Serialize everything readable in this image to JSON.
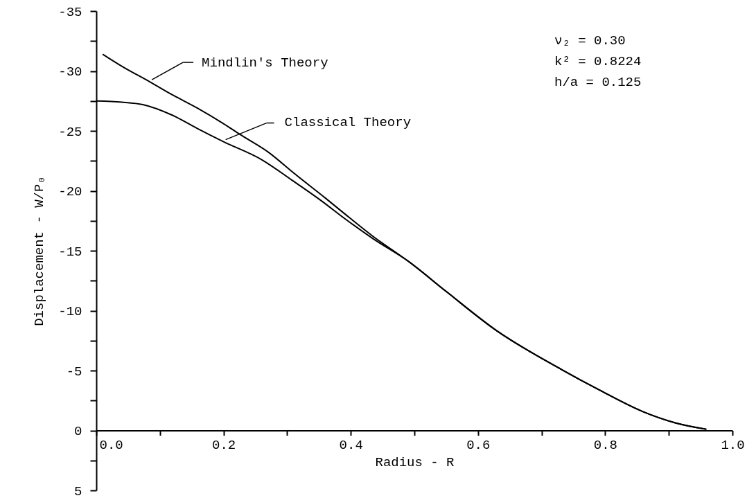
{
  "chart_data": {
    "type": "line",
    "xlabel": "Radius - R",
    "ylabel": "Displacement - W/P₀",
    "xlim": [
      0,
      1.0
    ],
    "xticks": [
      {
        "value": 0,
        "label": "0.0"
      },
      {
        "value": 0.1,
        "label": null
      },
      {
        "value": 0.2,
        "label": "0.2"
      },
      {
        "value": 0.3,
        "label": null
      },
      {
        "value": 0.4,
        "label": "0.4"
      },
      {
        "value": 0.5,
        "label": null
      },
      {
        "value": 0.6,
        "label": "0.6"
      },
      {
        "value": 0.7,
        "label": null
      },
      {
        "value": 0.8,
        "label": "0.8"
      },
      {
        "value": 0.9,
        "label": null
      },
      {
        "value": 1.0,
        "label": "1.0"
      }
    ],
    "ylim": [
      5,
      -35
    ],
    "yticks": [
      -35,
      {
        "value": -32.5,
        "label": null
      },
      -30,
      {
        "value": -27.5,
        "label": null
      },
      -25,
      {
        "value": -22.5,
        "label": null
      },
      -20,
      {
        "value": -17.5,
        "label": null
      },
      -15,
      {
        "value": -12.5,
        "label": null
      },
      -10,
      {
        "value": -7.5,
        "label": null
      },
      -5,
      {
        "value": -2.5,
        "label": null
      },
      0,
      {
        "value": 2.5,
        "label": null
      },
      5
    ],
    "grid": false,
    "legend": "top left",
    "marker": "none",
    "line_style": "solid",
    "series": [
      {
        "name": "Mindlin's Theory",
        "color": "#000000",
        "x": [
          0.01,
          0.04,
          0.084,
          0.12,
          0.159,
          0.2,
          0.226,
          0.271,
          0.31,
          0.36,
          0.39,
          0.435,
          0.491,
          0.55,
          0.63,
          0.731,
          0.79,
          0.858,
          0.91,
          0.959
        ],
        "values": [
          -31.4,
          -30.4,
          -29.1,
          -28.0,
          -26.9,
          -25.6,
          -24.7,
          -23.2,
          -21.5,
          -19.4,
          -18.1,
          -16.2,
          -14.1,
          -11.6,
          -8.3,
          -5.1,
          -3.4,
          -1.6,
          -0.64,
          -0.1
        ]
      },
      {
        "name": "Classical Theory",
        "color": "#000000",
        "x": [
          0,
          0.04,
          0.073,
          0.12,
          0.159,
          0.2,
          0.26,
          0.31,
          0.353,
          0.39,
          0.435,
          0.491,
          0.55,
          0.63,
          0.731,
          0.79,
          0.858,
          0.91,
          0.959
        ],
        "values": [
          -27.5,
          -27.4,
          -27.2,
          -26.3,
          -25.2,
          -24.1,
          -22.6,
          -20.8,
          -19.2,
          -17.7,
          -16.0,
          -14.1,
          -11.6,
          -8.3,
          -5.1,
          -3.4,
          -1.6,
          -0.64,
          -0.1
        ]
      }
    ],
    "annotations": [
      "ν₂ = 0.30",
      "k² = 0.8224",
      "h/a = 0.125"
    ]
  }
}
